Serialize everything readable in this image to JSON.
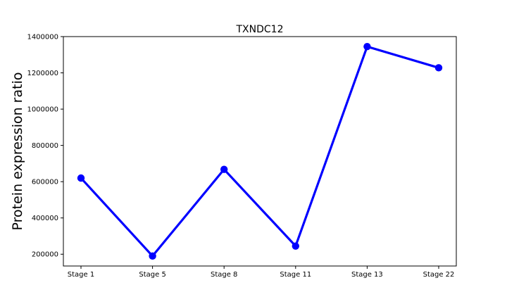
{
  "chart_data": {
    "type": "line",
    "title": "TXNDC12",
    "xlabel": "",
    "ylabel": "Protein expression ratio",
    "categories": [
      "Stage 1",
      "Stage 5",
      "Stage 8",
      "Stage 11",
      "Stage 13",
      "Stage 22"
    ],
    "series": [
      {
        "values": [
          620000,
          190000,
          668000,
          245000,
          1345000,
          1228000
        ],
        "color": "#0000ff"
      }
    ],
    "ylim": [
      135000,
      1400000
    ],
    "yticks": [
      200000,
      400000,
      600000,
      800000,
      1000000,
      1200000,
      1400000
    ],
    "ytick_labels": [
      "200000",
      "400000",
      "600000",
      "800000",
      "1000000",
      "1200000",
      "1400000"
    ],
    "grid": false,
    "legend": "none"
  }
}
